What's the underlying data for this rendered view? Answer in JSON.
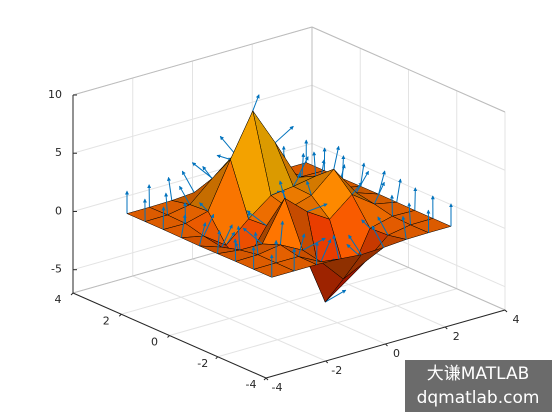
{
  "chart_data": {
    "type": "surface",
    "x": [
      -3,
      -2.25,
      -1.5,
      -0.75,
      0,
      0.75,
      1.5,
      2.25,
      3
    ],
    "y": [
      -3,
      -2.25,
      -1.5,
      -0.75,
      0,
      0.75,
      1.5,
      2.25,
      3
    ],
    "z": [
      [
        0,
        0,
        0,
        -0.07,
        -0.24,
        -0.17,
        -0.03,
        0,
        0
      ],
      [
        0,
        0.01,
        0.01,
        -0.99,
        -3.02,
        -2.05,
        -0.35,
        -0.01,
        0
      ],
      [
        0,
        0.03,
        0.33,
        -0.68,
        -5.68,
        -4.32,
        -0.44,
        0.05,
        0
      ],
      [
        -0.02,
        -0.25,
        -0.28,
        3.09,
        1.4,
        0.2,
        1.78,
        0.41,
        0.02
      ],
      [
        -0.04,
        -0.69,
        -2.77,
        0.06,
        0.98,
        1.57,
        3.27,
        0.7,
        0.03
      ],
      [
        -0.02,
        -0.42,
        -1.76,
        -0.05,
        1.42,
        1.65,
        1.99,
        0.4,
        0.02
      ],
      [
        0,
        -0.03,
        0.48,
        4.37,
        8.0,
        4.72,
        1.19,
        0.12,
        0
      ],
      [
        0,
        0.02,
        0.36,
        2.07,
        3.65,
        2.09,
        0.41,
        0.03,
        0
      ],
      [
        0,
        0,
        0.03,
        0.17,
        0.3,
        0.17,
        0.03,
        0,
        0
      ]
    ],
    "xlim": [
      -4,
      4
    ],
    "ylim": [
      -4,
      4
    ],
    "zlim": [
      -7,
      10
    ],
    "xticks": [
      -4,
      -2,
      0,
      2,
      4
    ],
    "yticks": [
      -4,
      -2,
      0,
      2,
      4
    ],
    "zticks": [
      -5,
      0,
      5,
      10
    ],
    "grid": true,
    "colormap": "autumn",
    "edge_color": "#000000",
    "normal_color": "#0072bd"
  },
  "watermark": {
    "line1": "大谦MATLAB",
    "line2": "dqmatlab.com"
  }
}
